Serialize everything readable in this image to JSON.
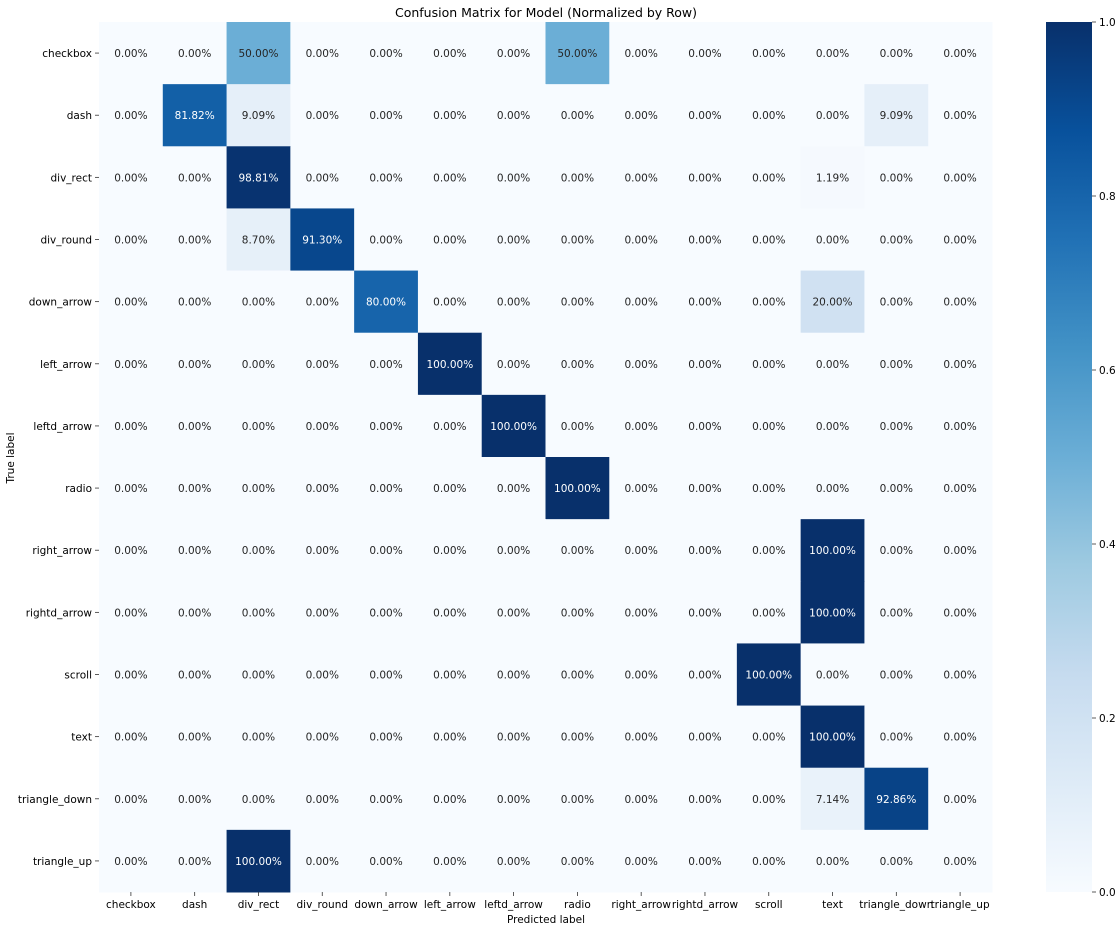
{
  "chart_data": {
    "type": "heatmap",
    "title": "Confusion Matrix for Model (Normalized by Row)",
    "xlabel": "Predicted label",
    "ylabel": "True label",
    "x_categories": [
      "checkbox",
      "dash",
      "div_rect",
      "div_round",
      "down_arrow",
      "left_arrow",
      "leftd_arrow",
      "radio",
      "right_arrow",
      "rightd_arrow",
      "scroll",
      "text",
      "triangle_down",
      "triangle_up"
    ],
    "y_categories": [
      "checkbox",
      "dash",
      "div_rect",
      "div_round",
      "down_arrow",
      "left_arrow",
      "leftd_arrow",
      "radio",
      "right_arrow",
      "rightd_arrow",
      "scroll",
      "text",
      "triangle_down",
      "triangle_up"
    ],
    "values": [
      [
        0.0,
        0.0,
        0.5,
        0.0,
        0.0,
        0.0,
        0.0,
        0.5,
        0.0,
        0.0,
        0.0,
        0.0,
        0.0,
        0.0
      ],
      [
        0.0,
        0.8182,
        0.0909,
        0.0,
        0.0,
        0.0,
        0.0,
        0.0,
        0.0,
        0.0,
        0.0,
        0.0,
        0.0909,
        0.0
      ],
      [
        0.0,
        0.0,
        0.9881,
        0.0,
        0.0,
        0.0,
        0.0,
        0.0,
        0.0,
        0.0,
        0.0,
        0.0119,
        0.0,
        0.0
      ],
      [
        0.0,
        0.0,
        0.087,
        0.913,
        0.0,
        0.0,
        0.0,
        0.0,
        0.0,
        0.0,
        0.0,
        0.0,
        0.0,
        0.0
      ],
      [
        0.0,
        0.0,
        0.0,
        0.0,
        0.8,
        0.0,
        0.0,
        0.0,
        0.0,
        0.0,
        0.0,
        0.2,
        0.0,
        0.0
      ],
      [
        0.0,
        0.0,
        0.0,
        0.0,
        0.0,
        1.0,
        0.0,
        0.0,
        0.0,
        0.0,
        0.0,
        0.0,
        0.0,
        0.0
      ],
      [
        0.0,
        0.0,
        0.0,
        0.0,
        0.0,
        0.0,
        1.0,
        0.0,
        0.0,
        0.0,
        0.0,
        0.0,
        0.0,
        0.0
      ],
      [
        0.0,
        0.0,
        0.0,
        0.0,
        0.0,
        0.0,
        0.0,
        1.0,
        0.0,
        0.0,
        0.0,
        0.0,
        0.0,
        0.0
      ],
      [
        0.0,
        0.0,
        0.0,
        0.0,
        0.0,
        0.0,
        0.0,
        0.0,
        0.0,
        0.0,
        0.0,
        1.0,
        0.0,
        0.0
      ],
      [
        0.0,
        0.0,
        0.0,
        0.0,
        0.0,
        0.0,
        0.0,
        0.0,
        0.0,
        0.0,
        0.0,
        1.0,
        0.0,
        0.0
      ],
      [
        0.0,
        0.0,
        0.0,
        0.0,
        0.0,
        0.0,
        0.0,
        0.0,
        0.0,
        0.0,
        1.0,
        0.0,
        0.0,
        0.0
      ],
      [
        0.0,
        0.0,
        0.0,
        0.0,
        0.0,
        0.0,
        0.0,
        0.0,
        0.0,
        0.0,
        0.0,
        1.0,
        0.0,
        0.0
      ],
      [
        0.0,
        0.0,
        0.0,
        0.0,
        0.0,
        0.0,
        0.0,
        0.0,
        0.0,
        0.0,
        0.0,
        0.0714,
        0.9286,
        0.0
      ],
      [
        0.0,
        0.0,
        1.0,
        0.0,
        0.0,
        0.0,
        0.0,
        0.0,
        0.0,
        0.0,
        0.0,
        0.0,
        0.0,
        0.0
      ]
    ],
    "cell_labels": [
      [
        "0.00%",
        "0.00%",
        "50.00%",
        "0.00%",
        "0.00%",
        "0.00%",
        "0.00%",
        "50.00%",
        "0.00%",
        "0.00%",
        "0.00%",
        "0.00%",
        "0.00%",
        "0.00%"
      ],
      [
        "0.00%",
        "81.82%",
        "9.09%",
        "0.00%",
        "0.00%",
        "0.00%",
        "0.00%",
        "0.00%",
        "0.00%",
        "0.00%",
        "0.00%",
        "0.00%",
        "9.09%",
        "0.00%"
      ],
      [
        "0.00%",
        "0.00%",
        "98.81%",
        "0.00%",
        "0.00%",
        "0.00%",
        "0.00%",
        "0.00%",
        "0.00%",
        "0.00%",
        "0.00%",
        "1.19%",
        "0.00%",
        "0.00%"
      ],
      [
        "0.00%",
        "0.00%",
        "8.70%",
        "91.30%",
        "0.00%",
        "0.00%",
        "0.00%",
        "0.00%",
        "0.00%",
        "0.00%",
        "0.00%",
        "0.00%",
        "0.00%",
        "0.00%"
      ],
      [
        "0.00%",
        "0.00%",
        "0.00%",
        "0.00%",
        "80.00%",
        "0.00%",
        "0.00%",
        "0.00%",
        "0.00%",
        "0.00%",
        "0.00%",
        "20.00%",
        "0.00%",
        "0.00%"
      ],
      [
        "0.00%",
        "0.00%",
        "0.00%",
        "0.00%",
        "0.00%",
        "100.00%",
        "0.00%",
        "0.00%",
        "0.00%",
        "0.00%",
        "0.00%",
        "0.00%",
        "0.00%",
        "0.00%"
      ],
      [
        "0.00%",
        "0.00%",
        "0.00%",
        "0.00%",
        "0.00%",
        "0.00%",
        "100.00%",
        "0.00%",
        "0.00%",
        "0.00%",
        "0.00%",
        "0.00%",
        "0.00%",
        "0.00%"
      ],
      [
        "0.00%",
        "0.00%",
        "0.00%",
        "0.00%",
        "0.00%",
        "0.00%",
        "0.00%",
        "100.00%",
        "0.00%",
        "0.00%",
        "0.00%",
        "0.00%",
        "0.00%",
        "0.00%"
      ],
      [
        "0.00%",
        "0.00%",
        "0.00%",
        "0.00%",
        "0.00%",
        "0.00%",
        "0.00%",
        "0.00%",
        "0.00%",
        "0.00%",
        "0.00%",
        "100.00%",
        "0.00%",
        "0.00%"
      ],
      [
        "0.00%",
        "0.00%",
        "0.00%",
        "0.00%",
        "0.00%",
        "0.00%",
        "0.00%",
        "0.00%",
        "0.00%",
        "0.00%",
        "0.00%",
        "100.00%",
        "0.00%",
        "0.00%"
      ],
      [
        "0.00%",
        "0.00%",
        "0.00%",
        "0.00%",
        "0.00%",
        "0.00%",
        "0.00%",
        "0.00%",
        "0.00%",
        "0.00%",
        "100.00%",
        "0.00%",
        "0.00%",
        "0.00%"
      ],
      [
        "0.00%",
        "0.00%",
        "0.00%",
        "0.00%",
        "0.00%",
        "0.00%",
        "0.00%",
        "0.00%",
        "0.00%",
        "0.00%",
        "0.00%",
        "100.00%",
        "0.00%",
        "0.00%"
      ],
      [
        "0.00%",
        "0.00%",
        "0.00%",
        "0.00%",
        "0.00%",
        "0.00%",
        "0.00%",
        "0.00%",
        "0.00%",
        "0.00%",
        "0.00%",
        "7.14%",
        "92.86%",
        "0.00%"
      ],
      [
        "0.00%",
        "0.00%",
        "100.00%",
        "0.00%",
        "0.00%",
        "0.00%",
        "0.00%",
        "0.00%",
        "0.00%",
        "0.00%",
        "0.00%",
        "0.00%",
        "0.00%",
        "0.00%"
      ]
    ],
    "vmin": 0.0,
    "vmax": 1.0,
    "colormap": "Blues",
    "colorbar_ticks": [
      "0.0",
      "0.2",
      "0.4",
      "0.6",
      "0.8",
      "1.0"
    ],
    "colorbar_tick_values": [
      0.0,
      0.2,
      0.4,
      0.6,
      0.8,
      1.0
    ],
    "grid": false,
    "colorbar_position": "right"
  }
}
